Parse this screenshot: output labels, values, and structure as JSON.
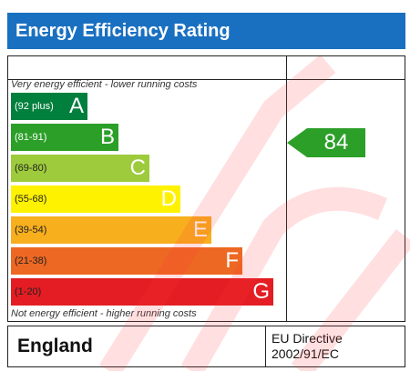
{
  "header": {
    "title": "Energy Efficiency Rating"
  },
  "captions": {
    "top": "Very energy efficient - lower running costs",
    "bottom": "Not energy efficient - higher running costs"
  },
  "bands": [
    {
      "range": "(92 plus)",
      "letter": "A",
      "color": "#007f3d"
    },
    {
      "range": "(81-91)",
      "letter": "B",
      "color": "#2c9f29"
    },
    {
      "range": "(69-80)",
      "letter": "C",
      "color": "#9dcb3c"
    },
    {
      "range": "(55-68)",
      "letter": "D",
      "color": "#fff200"
    },
    {
      "range": "(39-54)",
      "letter": "E",
      "color": "#f7af1d"
    },
    {
      "range": "(21-38)",
      "letter": "F",
      "color": "#ed6823"
    },
    {
      "range": "(1-20)",
      "letter": "G",
      "color": "#e31d23"
    }
  ],
  "current_rating": {
    "value": "84",
    "color": "#2c9f29"
  },
  "footer": {
    "country": "England",
    "directive_line1": "EU Directive",
    "directive_line2": "2002/91/EC"
  }
}
